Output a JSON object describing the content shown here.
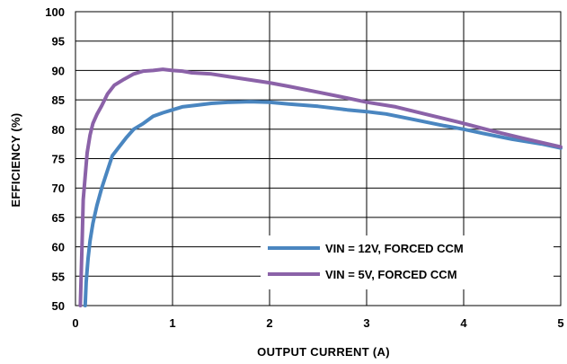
{
  "chart_data": {
    "type": "line",
    "xlabel": "OUTPUT CURRENT (A)",
    "ylabel": "EFFICIENCY (%)",
    "xlim": [
      0,
      5
    ],
    "ylim": [
      50,
      100
    ],
    "xticks": [
      0,
      1,
      2,
      3,
      4,
      5
    ],
    "yticks": [
      50,
      55,
      60,
      65,
      70,
      75,
      80,
      85,
      90,
      95,
      100
    ],
    "grid": true,
    "legend_position": "bottom-right",
    "series": [
      {
        "name": "VIN = 12V, FORCED CCM",
        "color": "#4a86c0",
        "points": [
          [
            0.1,
            50
          ],
          [
            0.11,
            54
          ],
          [
            0.13,
            58
          ],
          [
            0.15,
            61
          ],
          [
            0.18,
            64
          ],
          [
            0.22,
            67
          ],
          [
            0.27,
            70
          ],
          [
            0.33,
            73
          ],
          [
            0.38,
            75.5
          ],
          [
            0.45,
            77
          ],
          [
            0.52,
            78.5
          ],
          [
            0.6,
            80
          ],
          [
            0.7,
            81
          ],
          [
            0.8,
            82.2
          ],
          [
            0.9,
            82.8
          ],
          [
            1.0,
            83.3
          ],
          [
            1.1,
            83.8
          ],
          [
            1.25,
            84.1
          ],
          [
            1.4,
            84.4
          ],
          [
            1.6,
            84.6
          ],
          [
            1.8,
            84.7
          ],
          [
            2.0,
            84.6
          ],
          [
            2.2,
            84.3
          ],
          [
            2.5,
            83.9
          ],
          [
            2.8,
            83.3
          ],
          [
            3.0,
            83.0
          ],
          [
            3.2,
            82.6
          ],
          [
            3.5,
            81.6
          ],
          [
            3.8,
            80.6
          ],
          [
            4.0,
            80.0
          ],
          [
            4.2,
            79.3
          ],
          [
            4.5,
            78.3
          ],
          [
            4.8,
            77.5
          ],
          [
            5.0,
            76.8
          ]
        ]
      },
      {
        "name": "VIN = 5V, FORCED CCM",
        "color": "#8b62a8",
        "points": [
          [
            0.05,
            50
          ],
          [
            0.06,
            56
          ],
          [
            0.07,
            62
          ],
          [
            0.08,
            68
          ],
          [
            0.1,
            72
          ],
          [
            0.12,
            76
          ],
          [
            0.15,
            79
          ],
          [
            0.18,
            81
          ],
          [
            0.22,
            82.5
          ],
          [
            0.27,
            84
          ],
          [
            0.33,
            86
          ],
          [
            0.4,
            87.5
          ],
          [
            0.5,
            88.5
          ],
          [
            0.6,
            89.4
          ],
          [
            0.7,
            89.9
          ],
          [
            0.8,
            90.0
          ],
          [
            0.9,
            90.2
          ],
          [
            1.0,
            90.0
          ],
          [
            1.1,
            89.9
          ],
          [
            1.2,
            89.6
          ],
          [
            1.4,
            89.4
          ],
          [
            1.6,
            88.9
          ],
          [
            1.8,
            88.4
          ],
          [
            2.0,
            87.9
          ],
          [
            2.2,
            87.3
          ],
          [
            2.5,
            86.3
          ],
          [
            2.8,
            85.3
          ],
          [
            3.0,
            84.6
          ],
          [
            3.3,
            83.8
          ],
          [
            3.6,
            82.6
          ],
          [
            4.0,
            81.0
          ],
          [
            4.3,
            79.7
          ],
          [
            4.6,
            78.5
          ],
          [
            5.0,
            77.0
          ]
        ]
      }
    ]
  }
}
